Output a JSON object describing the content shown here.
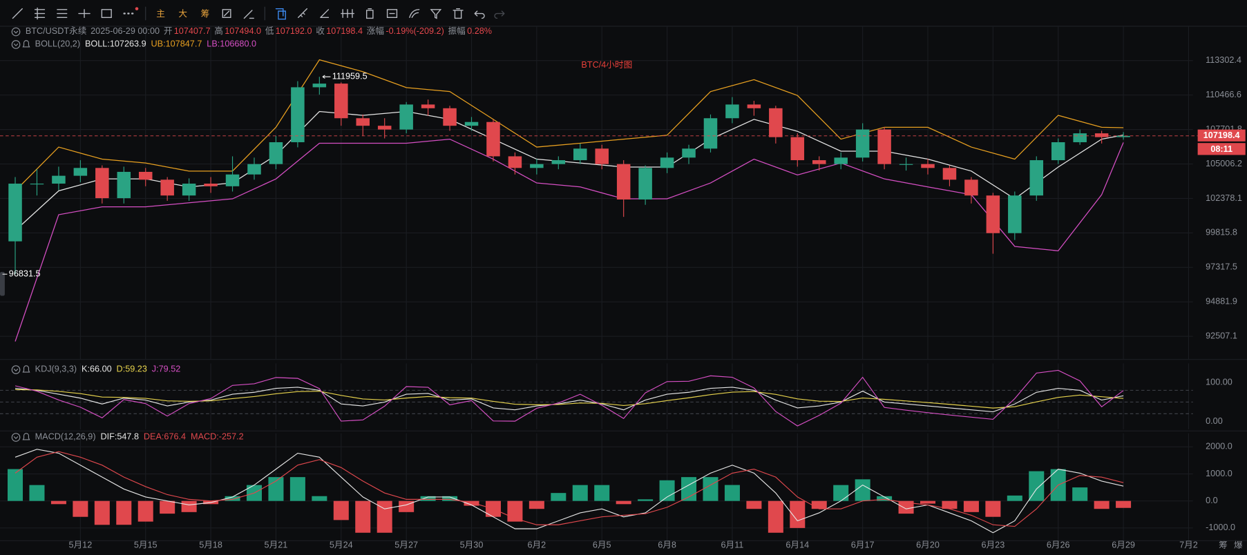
{
  "toolbar": {
    "main": "主",
    "big": "大",
    "chips": "筹"
  },
  "header": {
    "symbol": "BTC/USDT永续",
    "time": "2025-06-29 00:00",
    "open_label": "开",
    "open": "107407.7",
    "high_label": "高",
    "high": "107494.0",
    "low_label": "低",
    "low": "107192.0",
    "close_label": "收",
    "close": "107198.4",
    "change_label": "涨幅",
    "change": "-0.19%(-209.2)",
    "amp_label": "振幅",
    "amp": "0.28%"
  },
  "countdown": "08:11",
  "corner": [
    "筹",
    "爆"
  ],
  "chart_data": [
    {
      "type": "candlestick",
      "title": "BTC/4小时图",
      "indicator": "BOLL(20,2)",
      "log_scale": true,
      "grid": true,
      "up_color": "#2aa383",
      "down_color": "#e0484d",
      "x": [
        9,
        10,
        11,
        12,
        13,
        14,
        15,
        16,
        17,
        18,
        19,
        20,
        21,
        22,
        23,
        24,
        25,
        26,
        27,
        28,
        29,
        30,
        31,
        32,
        33,
        34,
        35,
        36,
        37,
        38,
        39,
        40,
        41,
        42,
        43,
        44,
        45,
        46,
        47,
        48,
        49,
        50,
        51,
        52,
        53,
        54,
        55,
        56,
        57,
        58,
        59,
        60
      ],
      "open": [
        99200,
        103500,
        103500,
        104100,
        104700,
        102400,
        104400,
        103800,
        102600,
        103500,
        103300,
        104200,
        105000,
        106700,
        111100,
        111400,
        108600,
        108000,
        107700,
        109700,
        109400,
        108000,
        108300,
        105600,
        104700,
        105000,
        105300,
        106200,
        105000,
        102300,
        104700,
        105500,
        106200,
        108600,
        109700,
        109400,
        107100,
        105300,
        105000,
        105500,
        107700,
        105000,
        105000,
        104700,
        103800,
        102600,
        99800,
        102600,
        105300,
        106700,
        107400,
        107100
      ],
      "high": [
        104000,
        104600,
        104800,
        105300,
        104900,
        104800,
        104700,
        104000,
        103900,
        104000,
        105600,
        105500,
        107200,
        111600,
        111959.5,
        111500,
        108900,
        108600,
        109900,
        110100,
        109600,
        108700,
        108500,
        105900,
        105400,
        105600,
        106600,
        106500,
        105300,
        104900,
        105900,
        106500,
        108900,
        110300,
        110000,
        109600,
        107400,
        105600,
        105900,
        108200,
        107900,
        105500,
        105400,
        104900,
        104000,
        102800,
        102900,
        105600,
        107000,
        107700,
        107600,
        107494
      ],
      "low": [
        96831.5,
        102600,
        103000,
        103600,
        102000,
        102000,
        103300,
        102200,
        102200,
        102800,
        102900,
        103800,
        104600,
        106300,
        110500,
        108000,
        107200,
        107000,
        107400,
        108800,
        107600,
        107600,
        105200,
        104200,
        104200,
        104600,
        105000,
        104600,
        101000,
        101900,
        104300,
        105000,
        105900,
        108200,
        108800,
        106600,
        104800,
        104500,
        104600,
        105200,
        104600,
        104500,
        104200,
        103300,
        102000,
        98300,
        99300,
        102200,
        105000,
        106500,
        106600,
        106900
      ],
      "close": [
        103500,
        103500,
        104100,
        104700,
        102400,
        104400,
        103800,
        102600,
        103500,
        103300,
        104200,
        105000,
        106700,
        111100,
        111400,
        108600,
        108000,
        107700,
        109700,
        109400,
        108000,
        108300,
        105600,
        104700,
        105000,
        105300,
        106200,
        105000,
        102300,
        104700,
        105500,
        106200,
        108600,
        109700,
        109400,
        107100,
        105300,
        105000,
        105500,
        107700,
        105000,
        105000,
        104700,
        103800,
        102600,
        99800,
        102600,
        105300,
        106700,
        107400,
        107100,
        107198.4
      ],
      "series": [
        {
          "name": "BOLL:107263.9",
          "color": "#e6e6e6",
          "x": [
            9,
            11,
            13,
            15,
            17,
            19,
            21,
            23,
            25,
            27,
            29,
            31,
            33,
            35,
            37,
            39,
            41,
            43,
            45,
            47,
            49,
            51,
            53,
            55,
            57,
            59,
            60
          ],
          "values": [
            99990,
            102950,
            103860,
            103860,
            103250,
            103550,
            105690,
            109140,
            108830,
            109140,
            108510,
            106940,
            105380,
            105080,
            104770,
            104770,
            106940,
            108510,
            107560,
            106000,
            106000,
            105380,
            104460,
            102350,
            104770,
            106940,
            107263.9
          ]
        },
        {
          "name": "UB:107847.7",
          "color": "#e8a020",
          "x": [
            9,
            11,
            13,
            15,
            17,
            19,
            21,
            23,
            25,
            27,
            29,
            31,
            33,
            35,
            37,
            39,
            41,
            43,
            45,
            47,
            49,
            51,
            53,
            55,
            57,
            59,
            60
          ],
          "values": [
            102950,
            106320,
            105380,
            105080,
            104460,
            104460,
            107880,
            113368,
            112380,
            111074,
            110750,
            108510,
            106320,
            106620,
            106940,
            107250,
            110750,
            111725,
            110430,
            106940,
            107880,
            107880,
            106320,
            105380,
            108830,
            107880,
            107847.7
          ]
        },
        {
          "name": "LB:106680.0",
          "color": "#d64fc4",
          "x": [
            9,
            11,
            13,
            15,
            17,
            19,
            21,
            23,
            25,
            27,
            29,
            31,
            33,
            35,
            37,
            39,
            41,
            43,
            45,
            47,
            49,
            51,
            53,
            55,
            57,
            59,
            60
          ],
          "values": [
            92160,
            101160,
            101750,
            101750,
            102050,
            102350,
            103860,
            106620,
            106620,
            106620,
            106940,
            105380,
            103550,
            103250,
            102350,
            102350,
            103550,
            105380,
            104160,
            105080,
            103860,
            103250,
            102660,
            98830,
            98510,
            102660,
            106680
          ]
        }
      ],
      "ylim": [
        90950,
        116200
      ],
      "yticks": [
        113302.4,
        110466.6,
        107701.8,
        105006.2,
        102378.1,
        99815.8,
        97317.5,
        94881.9,
        92507.1
      ],
      "xlim": [
        8.3,
        63.2
      ],
      "xticks": [
        {
          "value": 12,
          "label": "5月12"
        },
        {
          "value": 15,
          "label": "5月15"
        },
        {
          "value": 18,
          "label": "5月18"
        },
        {
          "value": 21,
          "label": "5月21"
        },
        {
          "value": 24,
          "label": "5月24"
        },
        {
          "value": 27,
          "label": "5月27"
        },
        {
          "value": 30,
          "label": "5月30"
        },
        {
          "value": 33,
          "label": "6月2"
        },
        {
          "value": 36,
          "label": "6月5"
        },
        {
          "value": 39,
          "label": "6月8"
        },
        {
          "value": 42,
          "label": "6月11"
        },
        {
          "value": 45,
          "label": "6月14"
        },
        {
          "value": 48,
          "label": "6月17"
        },
        {
          "value": 51,
          "label": "6月20"
        },
        {
          "value": 54,
          "label": "6月23"
        },
        {
          "value": 57,
          "label": "6月26"
        },
        {
          "value": 60,
          "label": "6月29"
        },
        {
          "value": 63,
          "label": "7月2"
        }
      ],
      "max_label": 111959.5,
      "min_label": 96831.5,
      "last_price": 107198.4,
      "last_price_color": "#e0484d"
    },
    {
      "type": "line",
      "title": "KDJ(9,3,3)",
      "grid": true,
      "x": [
        9,
        10,
        11,
        12,
        13,
        14,
        15,
        16,
        17,
        18,
        19,
        20,
        21,
        22,
        23,
        24,
        25,
        26,
        27,
        28,
        29,
        30,
        31,
        32,
        33,
        34,
        35,
        36,
        37,
        38,
        39,
        40,
        41,
        42,
        43,
        44,
        45,
        46,
        47,
        48,
        49,
        50,
        51,
        52,
        53,
        54,
        55,
        56,
        57,
        58,
        59,
        60
      ],
      "series": [
        {
          "name": "K:66.00",
          "color": "#e6e6e6",
          "values": [
            85,
            80,
            70,
            60,
            45,
            60,
            55,
            40,
            50,
            55,
            70,
            75,
            85,
            88,
            80,
            45,
            40,
            50,
            70,
            72,
            55,
            58,
            35,
            30,
            40,
            45,
            55,
            45,
            30,
            55,
            70,
            75,
            85,
            88,
            80,
            55,
            35,
            40,
            50,
            78,
            50,
            45,
            40,
            35,
            30,
            25,
            45,
            75,
            85,
            80,
            55,
            66
          ]
        },
        {
          "name": "D:59.23",
          "color": "#e8d44d",
          "values": [
            81.7,
            81.1,
            77.4,
            71.6,
            62.7,
            61.8,
            59.5,
            53,
            52,
            53,
            58.7,
            64.1,
            71.1,
            76.7,
            77.8,
            66.9,
            57.9,
            55.3,
            60.2,
            64.1,
            61.1,
            60.1,
            51.7,
            44.5,
            43,
            43.7,
            47.5,
            46.7,
            41.1,
            45.7,
            53.8,
            60.9,
            68.9,
            75.3,
            76.9,
            69.6,
            58.1,
            52.1,
            51.4,
            60.3,
            56.9,
            52.9,
            48.6,
            44.1,
            39.4,
            34.6,
            38.1,
            50.4,
            61.9,
            67.9,
            63.6,
            59.23
          ]
        },
        {
          "name": "J:79.52",
          "color": "#d64fc4",
          "values": [
            91.6,
            77.8,
            55.2,
            36.8,
            9.6,
            56.4,
            46,
            14,
            46,
            59,
            92.6,
            96.8,
            112.8,
            110.6,
            84.4,
            1.2,
            4.2,
            39.4,
            89.6,
            87.8,
            42.8,
            53.8,
            1.6,
            1,
            34,
            47.6,
            70,
            41.6,
            7.8,
            73.6,
            102.4,
            103.2,
            117.2,
            113.4,
            86.2,
            25.8,
            -11.2,
            15.8,
            47.2,
            113.4,
            36.2,
            29.2,
            22.8,
            16.8,
            11.2,
            5.8,
            58.8,
            124.2,
            131.2,
            104.2,
            37.8,
            79.52
          ]
        }
      ],
      "levels": [
        80,
        50,
        20
      ],
      "ylim": [
        -20,
        149
      ],
      "yticks": [
        {
          "value": 100,
          "label": "100.00"
        },
        {
          "value": 0,
          "label": "0.00"
        }
      ]
    },
    {
      "type": "macd",
      "title": "MACD(12,26,9)",
      "grid": true,
      "x": [
        9,
        10,
        11,
        12,
        13,
        14,
        15,
        16,
        17,
        18,
        19,
        20,
        21,
        22,
        23,
        24,
        25,
        26,
        27,
        28,
        29,
        30,
        31,
        32,
        33,
        34,
        35,
        36,
        37,
        38,
        39,
        40,
        41,
        42,
        43,
        44,
        45,
        46,
        47,
        48,
        49,
        50,
        51,
        52,
        53,
        54,
        55,
        56,
        57,
        58,
        59,
        60
      ],
      "series": [
        {
          "name": "DIF:547.8",
          "color": "#e6e6e6",
          "values": [
            1618,
            1912,
            1765,
            1324,
            882,
            441,
            147,
            0,
            -147,
            -59,
            147,
            588,
            1176,
            1765,
            1618,
            882,
            147,
            -294,
            -147,
            147,
            147,
            -147,
            -588,
            -1029,
            -1029,
            -735,
            -441,
            -294,
            -588,
            -441,
            147,
            588,
            1029,
            1324,
            1029,
            294,
            -735,
            -441,
            0,
            588,
            147,
            -294,
            -147,
            -441,
            -735,
            -1176,
            -735,
            441,
            1176,
            1029,
            735,
            547.8
          ]
        },
        {
          "name": "DEA:676.4",
          "color": "#e0484d",
          "values": [
            1029,
            1618,
            1824,
            1618,
            1324,
            882,
            529,
            235,
            59,
            0,
            59,
            294,
            735,
            1324,
            1529,
            1235,
            735,
            294,
            59,
            59,
            59,
            -59,
            -294,
            -647,
            -882,
            -882,
            -735,
            -588,
            -529,
            -471,
            -235,
            147,
            588,
            1029,
            1176,
            882,
            147,
            -294,
            -294,
            0,
            59,
            -59,
            -147,
            -294,
            -529,
            -882,
            -941,
            -294,
            588,
            941,
            882,
            676.4
          ]
        }
      ],
      "histogram": {
        "name": "MACD:-257.2",
        "up_color": "#1f9d7a",
        "down_color": "#e0484d",
        "values": [
          1178,
          588,
          -118,
          -588,
          -884,
          -882,
          -764,
          -470,
          -412,
          -118,
          176,
          588,
          882,
          882,
          178,
          -706,
          -1176,
          -1176,
          -412,
          176,
          176,
          -176,
          -588,
          -764,
          -294,
          294,
          588,
          588,
          -118,
          60,
          764,
          882,
          882,
          590,
          -294,
          -1176,
          -1000,
          -294,
          588,
          800,
          176,
          -470,
          -100,
          -294,
          -412,
          -588,
          200,
          1100,
          1176,
          500,
          -294,
          -257.2
        ]
      },
      "ylim": [
        -1470,
        2500
      ],
      "yticks": [
        {
          "value": 2000,
          "label": "2000.0"
        },
        {
          "value": 1000,
          "label": "1000.0"
        },
        {
          "value": 0,
          "label": "0.0"
        },
        {
          "value": -1000,
          "label": "-1000.0"
        }
      ]
    }
  ]
}
